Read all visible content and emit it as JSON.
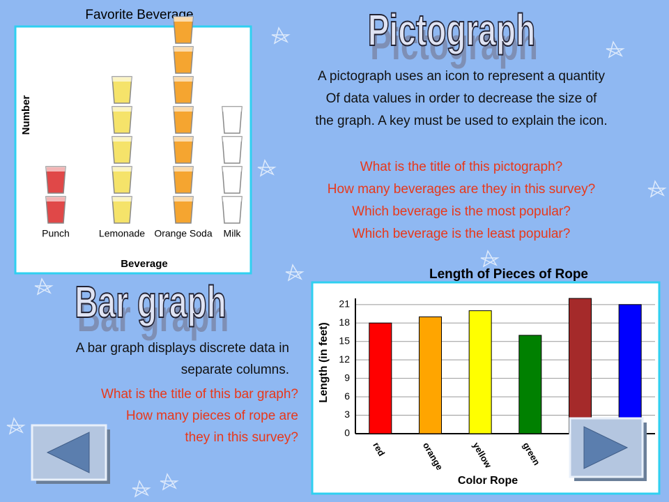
{
  "slide": {
    "pictograph_heading": "Pictograph",
    "bargraph_heading": "Bar graph",
    "pictograph_text": [
      "A pictograph uses an icon to represent a quantity",
      "Of data values in order to decrease the size of",
      "the graph. A key must be used to explain the icon."
    ],
    "pictograph_questions": [
      "What is the title of this pictograph?",
      "How many beverages are they in this survey?",
      "Which beverage is the most popular?",
      "Which beverage is the least popular?"
    ],
    "bargraph_text": [
      "A bar graph displays discrete data in",
      "separate columns."
    ],
    "bargraph_questions": [
      "What is the title of this bar graph?",
      "How many pieces of rope are",
      "they in this survey?"
    ]
  },
  "chart_data": [
    {
      "type": "pictograph",
      "title": "Favorite Beverage",
      "x_label": "Beverage",
      "y_label": "Number",
      "categories": [
        "Punch",
        "Lemonade",
        "Orange Soda",
        "Milk"
      ],
      "values": [
        2,
        5,
        7,
        4
      ],
      "colors": [
        "#e04848",
        "#f5e36a",
        "#f5a530",
        "#ffffff"
      ]
    },
    {
      "type": "bar",
      "title": "Length of Pieces of Rope",
      "x_label": "Color Rope",
      "y_label": "Length (in feet)",
      "categories": [
        "red",
        "orange",
        "yellow",
        "green",
        null,
        null
      ],
      "values": [
        18,
        19,
        20,
        16,
        22,
        21
      ],
      "colors": [
        "#ff0000",
        "#ffa500",
        "#ffff00",
        "#008000",
        "#a52a2a",
        "#0000ff"
      ],
      "ylim": [
        0,
        22
      ],
      "yticks": [
        0,
        3,
        6,
        9,
        12,
        15,
        18,
        21
      ],
      "grid": true
    }
  ]
}
